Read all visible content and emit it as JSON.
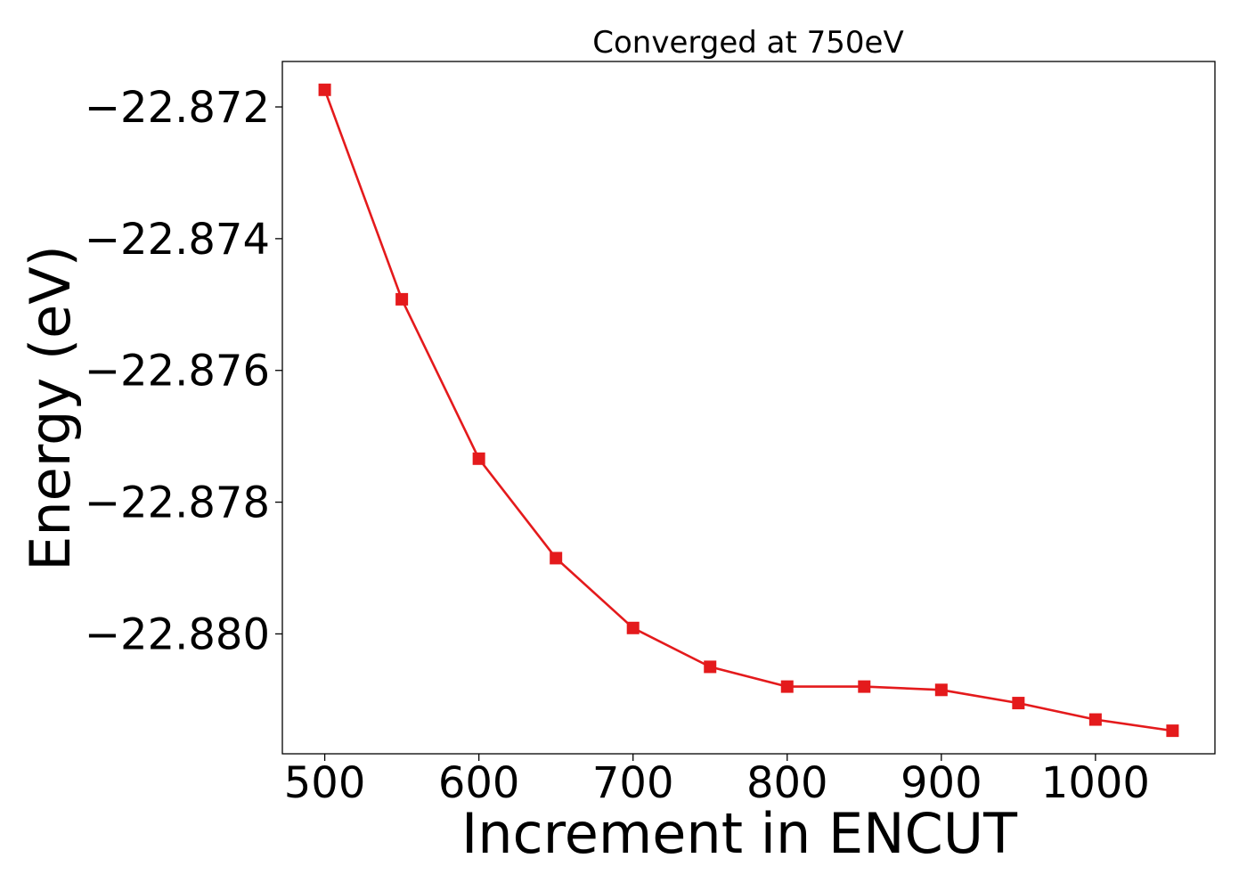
{
  "chart_data": {
    "type": "line",
    "title": "Converged at 750eV",
    "xlabel": "Increment in ENCUT",
    "ylabel": "Energy (eV)",
    "xlim": [
      472.5,
      1077.5
    ],
    "ylim": [
      -22.88182,
      -22.87131
    ],
    "xticks": [
      500,
      600,
      700,
      800,
      900,
      1000
    ],
    "xtick_labels": [
      "500",
      "600",
      "700",
      "800",
      "900",
      "1000"
    ],
    "yticks": [
      -22.872,
      -22.874,
      -22.876,
      -22.878,
      -22.88
    ],
    "ytick_labels": [
      "−22.872",
      "−22.874",
      "−22.876",
      "−22.878",
      "−22.880"
    ],
    "grid": false,
    "series": [
      {
        "color": "#e41a1c",
        "marker": "square",
        "x": [
          500,
          550,
          600,
          650,
          700,
          750,
          800,
          850,
          900,
          950,
          1000,
          1050
        ],
        "y": [
          -22.87174,
          -22.87492,
          -22.87734,
          -22.87885,
          -22.87991,
          -22.8805,
          -22.8808,
          -22.8808,
          -22.88085,
          -22.88105,
          -22.8813,
          -22.88147
        ]
      }
    ]
  }
}
